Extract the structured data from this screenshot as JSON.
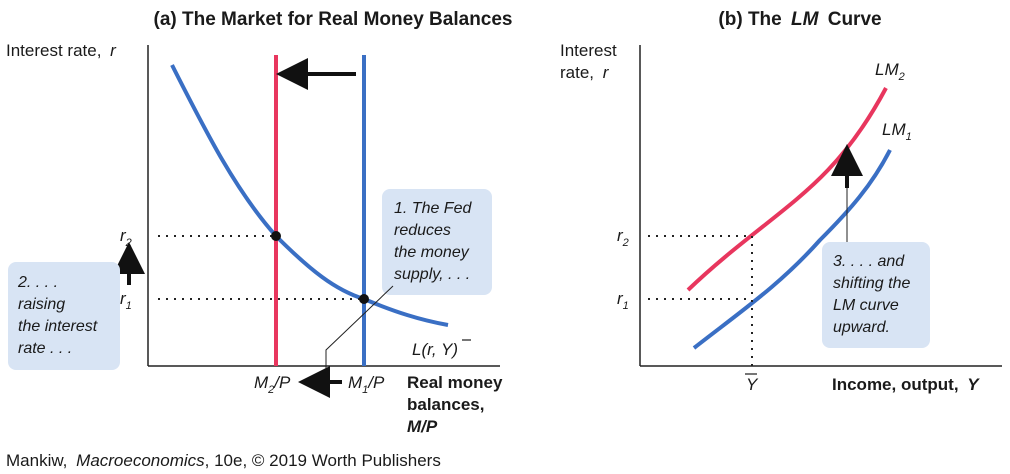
{
  "panel_a": {
    "title": "(a) The Market for Real Money Balances",
    "y_axis_label": "Interest rate,",
    "y_axis_var": "r",
    "tick_r2": "r",
    "tick_r2_sub": "2",
    "tick_r1": "r",
    "tick_r1_sub": "1",
    "x_label_line1": "Real money",
    "x_label_line2": "balances,",
    "x_label_line3": "M/P",
    "m2p_M": "M",
    "m2p_sub": "2",
    "m2p_rest": "/P",
    "m1p_M": "M",
    "m1p_sub": "1",
    "m1p_rest": "/P",
    "demand_label": "L(r, Y)",
    "note_fed": [
      "1. The Fed",
      "reduces",
      "the money",
      "supply, . . ."
    ],
    "note_raise": [
      "2. . . .",
      "raising",
      "the interest",
      "rate . . ."
    ]
  },
  "panel_b": {
    "title_prefix": "(b) The",
    "title_lm": "LM",
    "title_suffix": "Curve",
    "y_axis_line1": "Interest",
    "y_axis_line2": "rate,",
    "y_axis_var": "r",
    "tick_r2": "r",
    "tick_r2_sub": "2",
    "tick_r1": "r",
    "tick_r1_sub": "1",
    "lm2_label": "LM",
    "lm2_sub": "2",
    "lm1_label": "LM",
    "lm1_sub": "1",
    "ybar_label": "Y",
    "x_axis_label": "Income, output,",
    "x_axis_var": "Y",
    "note_shift": [
      "3. . . . and",
      "shifting the",
      "LM curve",
      "upward."
    ]
  },
  "credit": {
    "author": "Mankiw,",
    "book": "Macroeconomics",
    "rest": ", 10e, © 2019 Worth Publishers"
  },
  "colors": {
    "blue_curve": "#3a6fc4",
    "red_curve": "#e8365e",
    "note_fill": "#d8e4f4",
    "arrow": "#111111"
  }
}
